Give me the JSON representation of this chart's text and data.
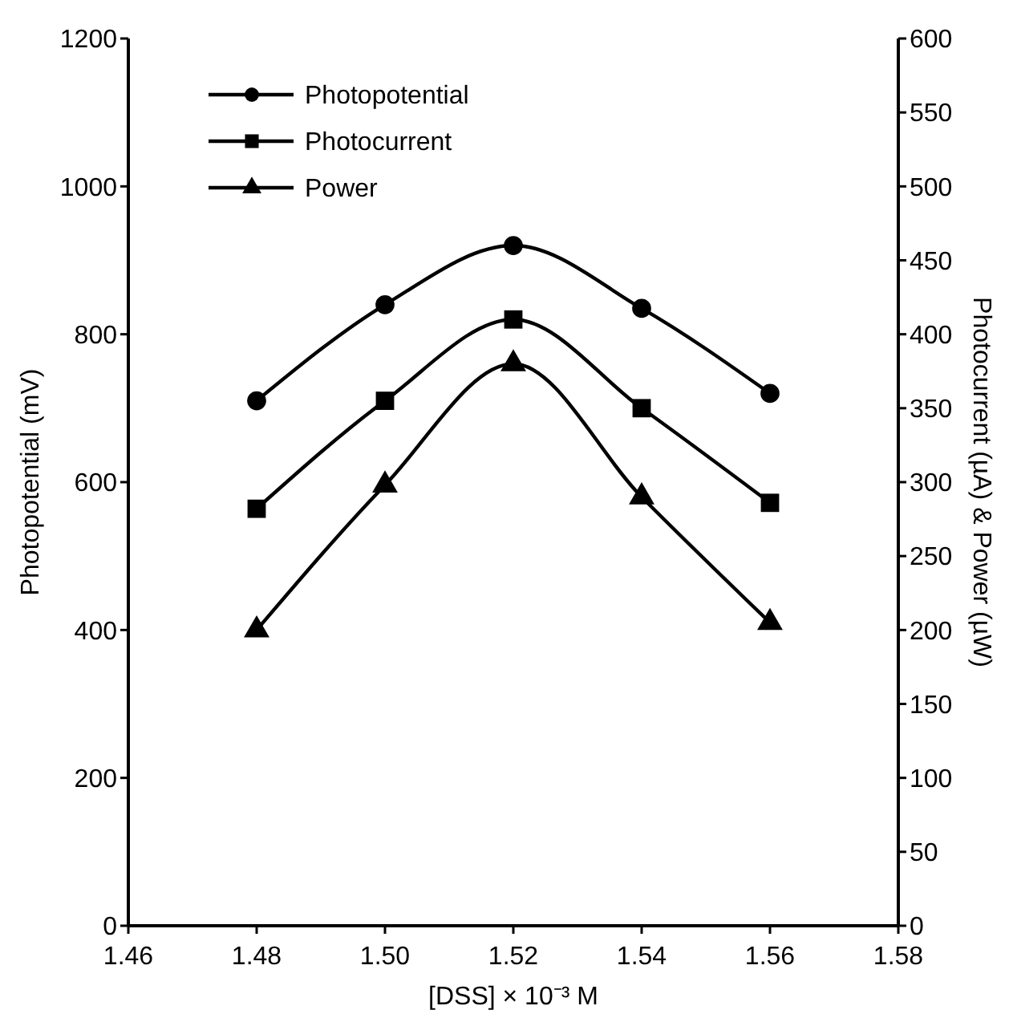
{
  "chart_data": {
    "type": "line",
    "xlabel": "[DSS] × 10⁻³ M",
    "ylabel": "Photopotential (mV)",
    "y2label": "Photocurrent (µA) & Power (µW)",
    "x": [
      1.48,
      1.5,
      1.52,
      1.54,
      1.56
    ],
    "xlim": [
      1.46,
      1.58
    ],
    "xticks": [
      {
        "value": 1.46,
        "label": "1.46"
      },
      {
        "value": 1.48,
        "label": "1.48"
      },
      {
        "value": 1.5,
        "label": "1.50"
      },
      {
        "value": 1.52,
        "label": "1.52"
      },
      {
        "value": 1.54,
        "label": "1.54"
      },
      {
        "value": 1.56,
        "label": "1.56"
      },
      {
        "value": 1.58,
        "label": "1.58"
      }
    ],
    "ylim": [
      0,
      1200
    ],
    "yticks": [
      0,
      200,
      400,
      600,
      800,
      1000,
      1200
    ],
    "y2lim": [
      0,
      600
    ],
    "y2ticks": [
      0,
      50,
      100,
      150,
      200,
      250,
      300,
      350,
      400,
      450,
      500,
      550,
      600
    ],
    "legend": "top left",
    "grid": false,
    "line_style": "solid",
    "series": [
      {
        "name": "Photopotential",
        "color": "#000000",
        "marker": "circle",
        "values": [
          710,
          840,
          920,
          835,
          720
        ]
      },
      {
        "name": "Photocurrent",
        "color": "#000000",
        "marker": "square",
        "axis": "y2",
        "values": [
          282,
          355,
          410,
          350,
          286
        ]
      },
      {
        "name": "Power",
        "color": "#000000",
        "marker": "triangle",
        "axis": "y2",
        "values": [
          200,
          298,
          380,
          290,
          205
        ]
      }
    ]
  }
}
